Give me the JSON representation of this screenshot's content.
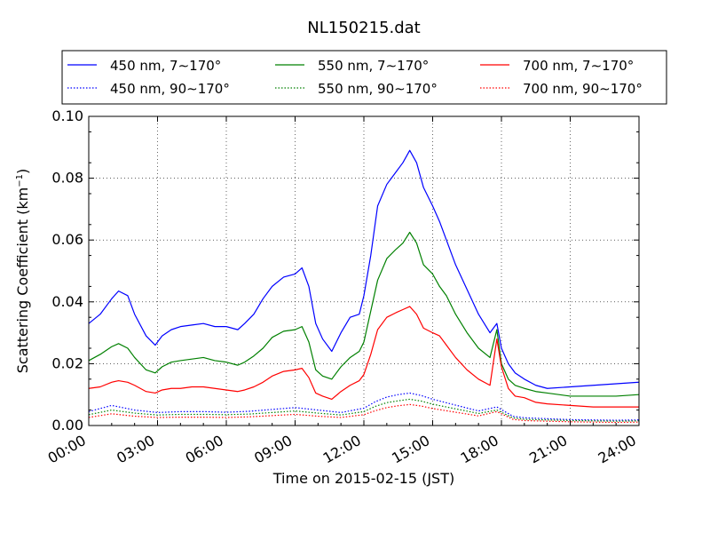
{
  "chart_data": {
    "type": "line",
    "title": "NL150215.dat",
    "xlabel": "Time on 2015-02-15 (JST)",
    "ylabel": "Scattering Coefficient (km",
    "ylabel_sup": "−1",
    "ylabel_end": ")",
    "x_unit": "hours since 00:00 JST",
    "xlim": [
      0,
      24
    ],
    "ylim": [
      0.0,
      0.1
    ],
    "x_ticks": [
      0,
      3,
      6,
      9,
      12,
      15,
      18,
      21,
      24
    ],
    "x_tick_labels": [
      "00:00",
      "03:00",
      "06:00",
      "09:00",
      "12:00",
      "15:00",
      "18:00",
      "21:00",
      "24:00"
    ],
    "y_ticks": [
      0.0,
      0.02,
      0.04,
      0.06,
      0.08,
      0.1
    ],
    "y_tick_labels": [
      "0.00",
      "0.02",
      "0.04",
      "0.06",
      "0.08",
      "0.10"
    ],
    "grid": true,
    "legend_position": "top (above plot, 3 columns)",
    "series": [
      {
        "name": "450 nm, 7∼170°",
        "color": "#0000ff",
        "style": "solid",
        "x": [
          0,
          0.5,
          1,
          1.3,
          1.7,
          2,
          2.5,
          2.9,
          3.2,
          3.6,
          4,
          4.5,
          5,
          5.5,
          6,
          6.5,
          6.8,
          7.2,
          7.6,
          8,
          8.5,
          9,
          9.3,
          9.6,
          9.9,
          10.2,
          10.6,
          11,
          11.4,
          11.8,
          12,
          12.3,
          12.6,
          13,
          13.4,
          13.7,
          14,
          14.3,
          14.6,
          15,
          15.3,
          15.6,
          16,
          16.5,
          17,
          17.5,
          17.8,
          18,
          18.3,
          18.6,
          19,
          19.5,
          20,
          21,
          22,
          23,
          24
        ],
        "y": [
          0.033,
          0.036,
          0.041,
          0.0435,
          0.042,
          0.036,
          0.029,
          0.026,
          0.029,
          0.031,
          0.032,
          0.0325,
          0.033,
          0.032,
          0.032,
          0.031,
          0.033,
          0.036,
          0.041,
          0.045,
          0.048,
          0.049,
          0.051,
          0.045,
          0.033,
          0.028,
          0.024,
          0.03,
          0.035,
          0.036,
          0.042,
          0.055,
          0.071,
          0.078,
          0.082,
          0.085,
          0.089,
          0.085,
          0.077,
          0.071,
          0.066,
          0.06,
          0.052,
          0.044,
          0.036,
          0.03,
          0.033,
          0.025,
          0.02,
          0.017,
          0.015,
          0.013,
          0.012,
          0.0125,
          0.013,
          0.0135,
          0.014
        ]
      },
      {
        "name": "550 nm, 7∼170°",
        "color": "#008000",
        "style": "solid",
        "x": [
          0,
          0.5,
          1,
          1.3,
          1.7,
          2,
          2.5,
          2.9,
          3.2,
          3.6,
          4,
          4.5,
          5,
          5.5,
          6,
          6.5,
          6.8,
          7.2,
          7.6,
          8,
          8.5,
          9,
          9.3,
          9.6,
          9.9,
          10.2,
          10.6,
          11,
          11.4,
          11.8,
          12,
          12.3,
          12.6,
          13,
          13.4,
          13.7,
          14,
          14.3,
          14.6,
          15,
          15.3,
          15.6,
          16,
          16.5,
          17,
          17.5,
          17.8,
          18,
          18.3,
          18.6,
          19,
          19.5,
          20,
          21,
          22,
          23,
          24
        ],
        "y": [
          0.021,
          0.023,
          0.0255,
          0.0265,
          0.025,
          0.022,
          0.018,
          0.017,
          0.019,
          0.0205,
          0.021,
          0.0215,
          0.022,
          0.021,
          0.0205,
          0.0195,
          0.0205,
          0.0225,
          0.025,
          0.0285,
          0.0305,
          0.031,
          0.032,
          0.027,
          0.018,
          0.016,
          0.015,
          0.019,
          0.022,
          0.024,
          0.027,
          0.037,
          0.047,
          0.054,
          0.057,
          0.059,
          0.0625,
          0.059,
          0.052,
          0.049,
          0.045,
          0.042,
          0.036,
          0.03,
          0.025,
          0.022,
          0.031,
          0.02,
          0.015,
          0.013,
          0.012,
          0.011,
          0.0105,
          0.0095,
          0.0095,
          0.0095,
          0.01
        ]
      },
      {
        "name": "700 nm, 7∼170°",
        "color": "#ff0000",
        "style": "solid",
        "x": [
          0,
          0.5,
          1,
          1.3,
          1.7,
          2,
          2.5,
          2.9,
          3.2,
          3.6,
          4,
          4.5,
          5,
          5.5,
          6,
          6.5,
          6.8,
          7.2,
          7.6,
          8,
          8.5,
          9,
          9.3,
          9.6,
          9.9,
          10.2,
          10.6,
          11,
          11.4,
          11.8,
          12,
          12.3,
          12.6,
          13,
          13.4,
          13.7,
          14,
          14.3,
          14.6,
          15,
          15.3,
          15.6,
          16,
          16.5,
          17,
          17.5,
          17.8,
          18,
          18.3,
          18.6,
          19,
          19.5,
          20,
          21,
          22,
          23,
          24
        ],
        "y": [
          0.012,
          0.0125,
          0.014,
          0.0145,
          0.014,
          0.013,
          0.011,
          0.0105,
          0.0115,
          0.012,
          0.012,
          0.0125,
          0.0125,
          0.012,
          0.0115,
          0.011,
          0.0115,
          0.0125,
          0.014,
          0.016,
          0.0175,
          0.018,
          0.0185,
          0.0155,
          0.0105,
          0.0095,
          0.0085,
          0.011,
          0.013,
          0.0145,
          0.0165,
          0.023,
          0.031,
          0.035,
          0.0365,
          0.0375,
          0.0385,
          0.036,
          0.0315,
          0.03,
          0.029,
          0.026,
          0.022,
          0.018,
          0.015,
          0.013,
          0.028,
          0.019,
          0.012,
          0.0095,
          0.009,
          0.0075,
          0.007,
          0.0065,
          0.006,
          0.006,
          0.006
        ]
      },
      {
        "name": "450 nm, 90∼170°",
        "color": "#0000ff",
        "style": "dotted",
        "x": [
          0,
          1,
          2,
          3,
          4,
          5,
          6,
          7,
          8,
          9,
          10,
          11,
          12,
          12.5,
          13,
          13.5,
          14,
          14.5,
          15,
          16,
          17,
          17.8,
          18.5,
          19,
          20,
          21,
          22,
          23,
          24
        ],
        "y": [
          0.0045,
          0.0065,
          0.005,
          0.0042,
          0.0045,
          0.0045,
          0.0043,
          0.0046,
          0.0052,
          0.0058,
          0.005,
          0.0042,
          0.0056,
          0.0077,
          0.0092,
          0.01,
          0.0105,
          0.0097,
          0.0085,
          0.0066,
          0.0047,
          0.006,
          0.003,
          0.0025,
          0.0022,
          0.0019,
          0.0018,
          0.0017,
          0.0018
        ]
      },
      {
        "name": "550 nm, 90∼170°",
        "color": "#008000",
        "style": "dotted",
        "x": [
          0,
          1,
          2,
          3,
          4,
          5,
          6,
          7,
          8,
          9,
          10,
          11,
          12,
          12.5,
          13,
          13.5,
          14,
          14.5,
          15,
          16,
          17,
          17.8,
          18.5,
          19,
          20,
          21,
          22,
          23,
          24
        ],
        "y": [
          0.0035,
          0.005,
          0.004,
          0.0034,
          0.0036,
          0.0036,
          0.0035,
          0.0037,
          0.0042,
          0.0047,
          0.004,
          0.0034,
          0.0045,
          0.0062,
          0.0074,
          0.008,
          0.0085,
          0.0079,
          0.0069,
          0.0054,
          0.0039,
          0.005,
          0.0025,
          0.002,
          0.0018,
          0.0016,
          0.0015,
          0.0014,
          0.0015
        ]
      },
      {
        "name": "700 nm, 90∼170°",
        "color": "#ff0000",
        "style": "dotted",
        "x": [
          0,
          1,
          2,
          3,
          4,
          5,
          6,
          7,
          8,
          9,
          10,
          11,
          12,
          12.5,
          13,
          13.5,
          14,
          14.5,
          15,
          16,
          17,
          17.8,
          18.5,
          19,
          20,
          21,
          22,
          23,
          24
        ],
        "y": [
          0.0026,
          0.0038,
          0.003,
          0.0026,
          0.0027,
          0.0027,
          0.0026,
          0.0028,
          0.0032,
          0.0036,
          0.003,
          0.0026,
          0.0035,
          0.0048,
          0.0058,
          0.0064,
          0.0068,
          0.0063,
          0.0055,
          0.0043,
          0.0031,
          0.0045,
          0.002,
          0.0016,
          0.0014,
          0.0012,
          0.0011,
          0.001,
          0.0011
        ]
      }
    ],
    "legend_order": [
      0,
      1,
      2,
      3,
      4,
      5
    ]
  }
}
